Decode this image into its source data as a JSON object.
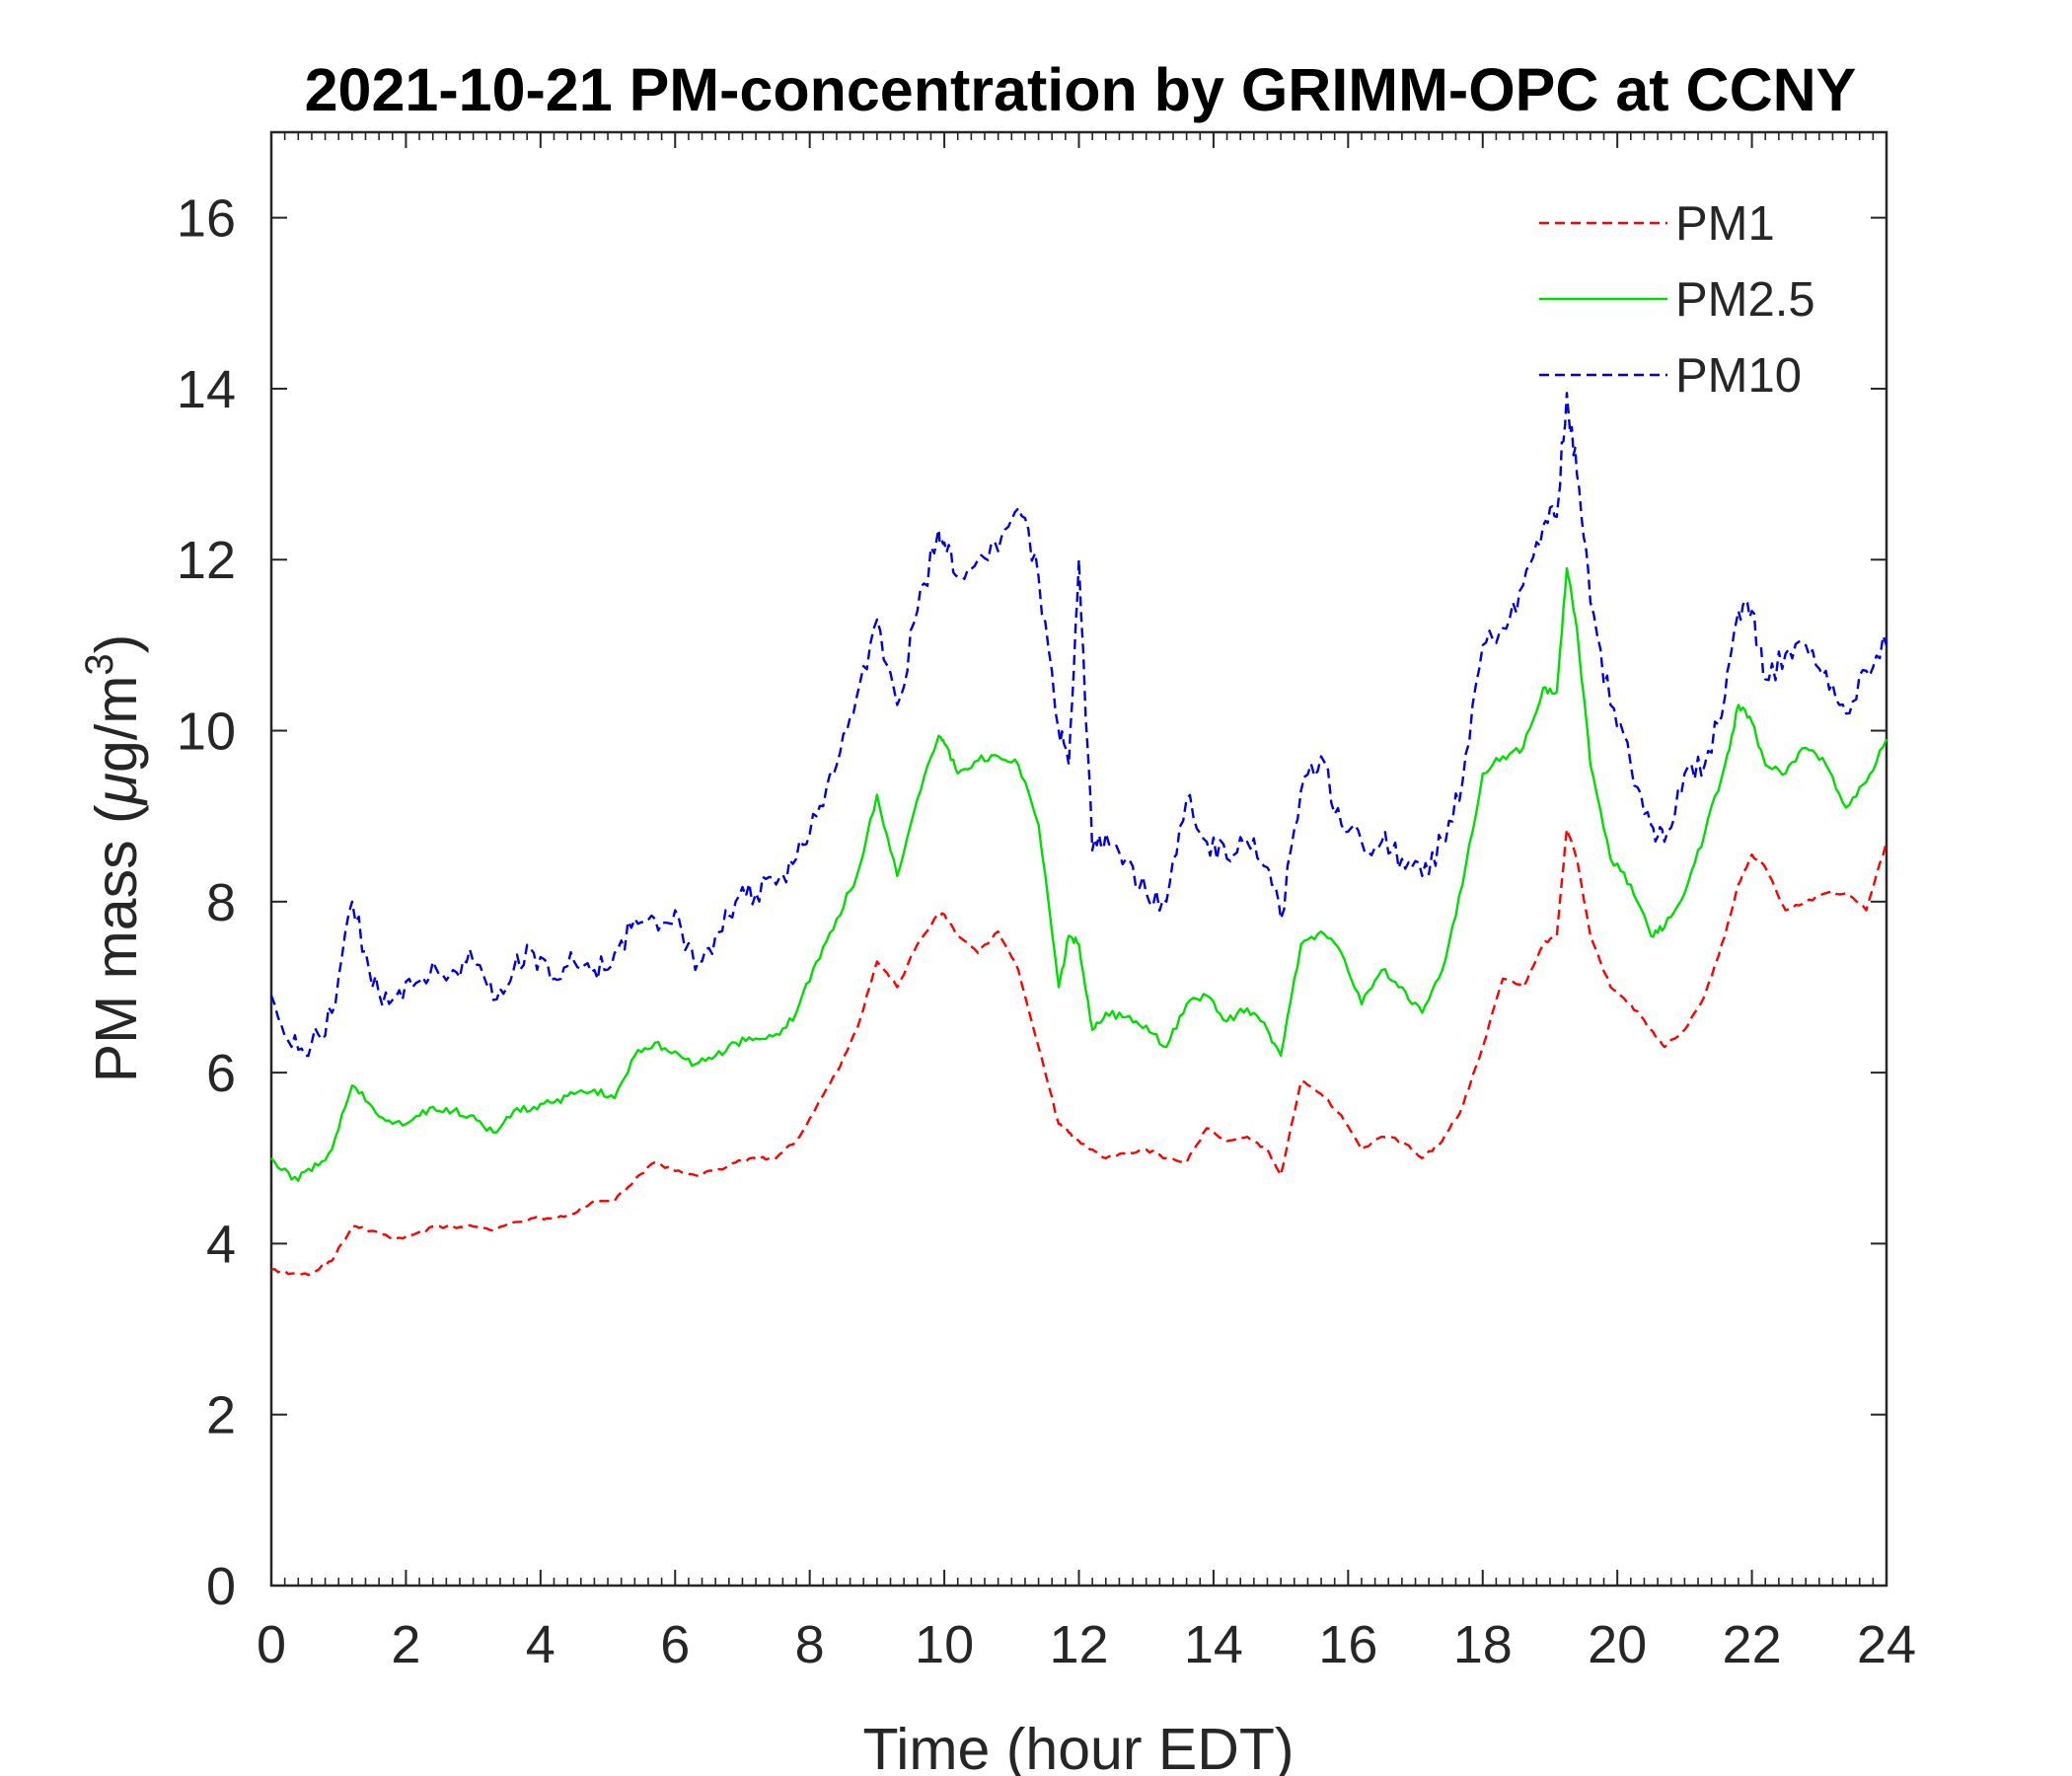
{
  "chart_data": {
    "type": "line",
    "title": "2021-10-21 PM-concentration by GRIMM-OPC at CCNY",
    "xlabel": "Time (hour EDT)",
    "ylabel_prefix": "PM mass (",
    "ylabel_mu": "μ",
    "ylabel_unit": "g/m",
    "ylabel_exp": "3",
    "ylabel_suffix": ")",
    "xlim": [
      0,
      24
    ],
    "ylim": [
      0,
      17
    ],
    "xticks": [
      "0",
      "2",
      "4",
      "6",
      "8",
      "10",
      "12",
      "14",
      "16",
      "18",
      "20",
      "22",
      "24"
    ],
    "yticks": [
      "0",
      "2",
      "4",
      "6",
      "8",
      "10",
      "12",
      "14",
      "16"
    ],
    "grid": false,
    "legend_position": "top-right",
    "x": [
      0,
      0.3,
      0.6,
      0.9,
      1.2,
      1.5,
      1.8,
      2.1,
      2.4,
      2.7,
      3.0,
      3.3,
      3.6,
      3.9,
      4.2,
      4.5,
      4.8,
      5.1,
      5.4,
      5.7,
      6.0,
      6.3,
      6.6,
      6.9,
      7.2,
      7.5,
      7.8,
      8.1,
      8.4,
      8.7,
      9.0,
      9.3,
      9.6,
      9.9,
      10.0,
      10.2,
      10.5,
      10.8,
      11.1,
      11.4,
      11.7,
      11.85,
      12.0,
      12.2,
      12.4,
      12.7,
      13.0,
      13.3,
      13.6,
      13.9,
      14.2,
      14.5,
      14.8,
      15.0,
      15.3,
      15.6,
      15.9,
      16.2,
      16.5,
      16.8,
      17.1,
      17.4,
      17.7,
      18.0,
      18.3,
      18.6,
      18.9,
      19.1,
      19.25,
      19.4,
      19.6,
      19.9,
      20.2,
      20.5,
      20.7,
      21.0,
      21.3,
      21.6,
      21.8,
      22.0,
      22.2,
      22.5,
      22.8,
      23.1,
      23.4,
      23.7,
      24.0
    ],
    "series": [
      {
        "name": "PM1",
        "color": "#ff0000",
        "style": "dashed",
        "values": [
          3.7,
          3.65,
          3.65,
          3.8,
          4.2,
          4.15,
          4.05,
          4.1,
          4.2,
          4.2,
          4.2,
          4.15,
          4.25,
          4.3,
          4.3,
          4.35,
          4.5,
          4.5,
          4.75,
          4.95,
          4.85,
          4.8,
          4.85,
          4.95,
          5.0,
          5.0,
          5.2,
          5.6,
          6.0,
          6.5,
          7.3,
          7.0,
          7.5,
          7.85,
          7.85,
          7.6,
          7.4,
          7.65,
          7.2,
          6.3,
          5.4,
          5.3,
          5.2,
          5.1,
          5.0,
          5.05,
          5.1,
          5.0,
          4.95,
          5.35,
          5.2,
          5.25,
          5.1,
          4.8,
          5.9,
          5.75,
          5.5,
          5.1,
          5.25,
          5.2,
          5.0,
          5.2,
          5.6,
          6.3,
          7.1,
          7.0,
          7.5,
          7.6,
          8.85,
          8.5,
          7.6,
          7.0,
          6.8,
          6.5,
          6.3,
          6.5,
          6.9,
          7.6,
          8.2,
          8.55,
          8.4,
          7.9,
          8.0,
          8.1,
          8.1,
          7.9,
          8.7
        ]
      },
      {
        "name": "PM2.5",
        "color": "#00dd00",
        "style": "solid",
        "values": [
          5.0,
          4.75,
          4.85,
          5.1,
          5.85,
          5.6,
          5.4,
          5.45,
          5.6,
          5.55,
          5.5,
          5.3,
          5.55,
          5.6,
          5.65,
          5.75,
          5.8,
          5.7,
          6.2,
          6.35,
          6.25,
          6.1,
          6.2,
          6.35,
          6.4,
          6.45,
          6.7,
          7.3,
          7.8,
          8.3,
          9.25,
          8.3,
          9.2,
          9.9,
          9.85,
          9.5,
          9.65,
          9.7,
          9.6,
          8.9,
          7.0,
          7.6,
          7.5,
          6.5,
          6.7,
          6.65,
          6.55,
          6.3,
          6.8,
          6.9,
          6.6,
          6.75,
          6.5,
          6.2,
          7.5,
          7.65,
          7.4,
          6.8,
          7.2,
          7.0,
          6.7,
          7.2,
          8.2,
          9.5,
          9.7,
          9.8,
          10.5,
          10.45,
          11.9,
          11.2,
          9.6,
          8.5,
          8.2,
          7.6,
          7.7,
          8.1,
          8.8,
          9.6,
          10.3,
          10.1,
          9.6,
          9.5,
          9.8,
          9.6,
          9.1,
          9.4,
          9.9
        ]
      },
      {
        "name": "PM10",
        "color": "#0000dd",
        "style": "dashed",
        "values": [
          6.9,
          6.3,
          6.35,
          6.7,
          8.0,
          7.0,
          6.85,
          7.0,
          7.3,
          7.2,
          7.3,
          6.85,
          7.2,
          7.4,
          7.1,
          7.3,
          7.2,
          7.4,
          7.8,
          7.8,
          7.9,
          7.2,
          7.6,
          8.0,
          8.1,
          8.2,
          8.5,
          9.0,
          9.6,
          10.4,
          11.3,
          10.3,
          11.4,
          12.3,
          12.2,
          11.8,
          12.0,
          12.1,
          12.6,
          11.8,
          10.0,
          9.6,
          12.0,
          8.6,
          8.8,
          8.5,
          8.1,
          8.0,
          9.2,
          8.7,
          8.5,
          8.7,
          8.4,
          7.8,
          9.3,
          9.7,
          8.9,
          8.7,
          8.7,
          8.5,
          8.3,
          8.7,
          9.4,
          11.0,
          11.2,
          11.7,
          12.4,
          12.5,
          13.95,
          13.0,
          11.5,
          10.3,
          9.6,
          8.9,
          8.7,
          9.5,
          9.6,
          10.4,
          11.4,
          11.4,
          10.6,
          10.9,
          11.0,
          10.7,
          10.2,
          10.7,
          11.0
        ]
      }
    ]
  }
}
